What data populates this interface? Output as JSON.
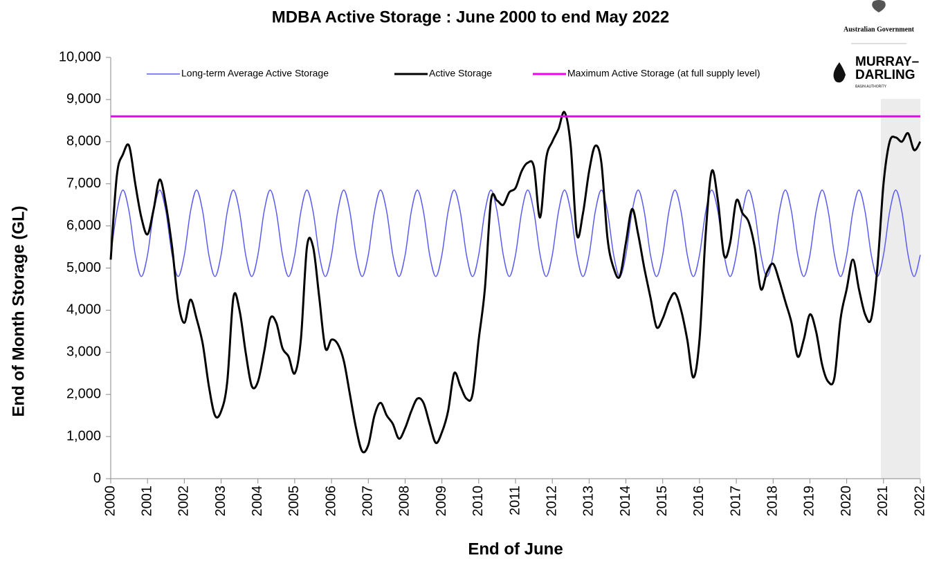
{
  "chart_data": {
    "type": "line",
    "title": "MDBA Active Storage : June 2000 to end May 2022",
    "xlabel": "End of June",
    "ylabel": "End of Month Storage (GL)",
    "logo": {
      "government": "Australian Government",
      "line1": "MURRAY–",
      "line2": "DARLING",
      "line3": "BASIN AUTHORITY"
    },
    "legend": "top",
    "xlim": [
      2000,
      2022
    ],
    "xticks": [
      2000,
      2001,
      2002,
      2003,
      2004,
      2005,
      2006,
      2007,
      2008,
      2009,
      2010,
      2011,
      2012,
      2013,
      2014,
      2015,
      2016,
      2017,
      2018,
      2019,
      2020,
      2021,
      2022
    ],
    "ylim": [
      0,
      10000
    ],
    "yticks": [
      0,
      {
        "value": 1000,
        "label": "1,000"
      },
      {
        "value": 2000,
        "label": "2,000"
      },
      {
        "value": 3000,
        "label": "3,000"
      },
      {
        "value": 4000,
        "label": "4,000"
      },
      {
        "value": 5000,
        "label": "5,000"
      },
      {
        "value": 6000,
        "label": "6,000"
      },
      {
        "value": 7000,
        "label": "7,000"
      },
      {
        "value": 8000,
        "label": "8,000"
      },
      {
        "value": 9000,
        "label": "9,000"
      },
      {
        "value": 10000,
        "label": "10,000"
      }
    ],
    "x": [
      2000,
      2000.167,
      2000.333,
      2000.5,
      2000.667,
      2000.833,
      2001,
      2001.167,
      2001.333,
      2001.5,
      2001.667,
      2001.833,
      2002,
      2002.167,
      2002.333,
      2002.5,
      2002.667,
      2002.833,
      2003,
      2003.167,
      2003.333,
      2003.5,
      2003.667,
      2003.833,
      2004,
      2004.167,
      2004.333,
      2004.5,
      2004.667,
      2004.833,
      2005,
      2005.167,
      2005.333,
      2005.5,
      2005.667,
      2005.833,
      2006,
      2006.167,
      2006.333,
      2006.5,
      2006.667,
      2006.833,
      2007,
      2007.167,
      2007.333,
      2007.5,
      2007.667,
      2007.833,
      2008,
      2008.167,
      2008.333,
      2008.5,
      2008.667,
      2008.833,
      2009,
      2009.167,
      2009.333,
      2009.5,
      2009.667,
      2009.833,
      2010,
      2010.167,
      2010.333,
      2010.5,
      2010.667,
      2010.833,
      2011,
      2011.167,
      2011.333,
      2011.5,
      2011.667,
      2011.833,
      2012,
      2012.167,
      2012.333,
      2012.5,
      2012.667,
      2012.833,
      2013,
      2013.167,
      2013.333,
      2013.5,
      2013.667,
      2013.833,
      2014,
      2014.167,
      2014.333,
      2014.5,
      2014.667,
      2014.833,
      2015,
      2015.167,
      2015.333,
      2015.5,
      2015.667,
      2015.833,
      2016,
      2016.167,
      2016.333,
      2016.5,
      2016.667,
      2016.833,
      2017,
      2017.167,
      2017.333,
      2017.5,
      2017.667,
      2017.833,
      2018,
      2018.167,
      2018.333,
      2018.5,
      2018.667,
      2018.833,
      2019,
      2019.167,
      2019.333,
      2019.5,
      2019.667,
      2019.833,
      2020,
      2020.167,
      2020.333,
      2020.5,
      2020.667,
      2020.833,
      2021,
      2021.167,
      2021.333,
      2021.5,
      2021.667,
      2021.833,
      2022
    ],
    "series": [
      {
        "name": "Long-term Average Active Storage",
        "color": "#5b5bf0",
        "values": [
          5312,
          6337,
          6850,
          6337,
          5312,
          4800,
          5312,
          6337,
          6850,
          6337,
          5312,
          4800,
          5312,
          6337,
          6850,
          6337,
          5312,
          4800,
          5312,
          6337,
          6850,
          6337,
          5312,
          4800,
          5312,
          6337,
          6850,
          6337,
          5312,
          4800,
          5312,
          6337,
          6850,
          6337,
          5312,
          4800,
          5312,
          6337,
          6850,
          6337,
          5312,
          4800,
          5312,
          6337,
          6850,
          6337,
          5312,
          4800,
          5312,
          6337,
          6850,
          6337,
          5312,
          4800,
          5312,
          6337,
          6850,
          6337,
          5312,
          4800,
          5312,
          6337,
          6850,
          6337,
          5312,
          4800,
          5312,
          6337,
          6850,
          6337,
          5312,
          4800,
          5312,
          6337,
          6850,
          6337,
          5312,
          4800,
          5312,
          6337,
          6850,
          6337,
          5312,
          4800,
          5312,
          6337,
          6850,
          6337,
          5312,
          4800,
          5312,
          6337,
          6850,
          6337,
          5312,
          4800,
          5312,
          6337,
          6850,
          6337,
          5312,
          4800,
          5312,
          6337,
          6850,
          6337,
          5312,
          4800,
          5312,
          6337,
          6850,
          6337,
          5312,
          4800,
          5312,
          6337,
          6850,
          6337,
          5312,
          4800,
          5312,
          6337,
          6850,
          6337,
          5312,
          4800,
          5312,
          6337,
          6850,
          6337,
          5312,
          4800,
          5312
        ]
      },
      {
        "name": "Active Storage",
        "color": "#000000",
        "values": [
          5200,
          7200,
          7700,
          7900,
          7000,
          6200,
          5800,
          6400,
          7100,
          6500,
          5500,
          4200,
          3700,
          4250,
          3800,
          3200,
          2200,
          1500,
          1600,
          2300,
          4300,
          4000,
          3000,
          2200,
          2300,
          3000,
          3800,
          3700,
          3100,
          2900,
          2500,
          3300,
          5500,
          5500,
          4300,
          3100,
          3300,
          3200,
          2800,
          2000,
          1200,
          650,
          800,
          1500,
          1800,
          1500,
          1300,
          950,
          1200,
          1600,
          1900,
          1800,
          1300,
          850,
          1100,
          1600,
          2500,
          2200,
          1900,
          2000,
          3300,
          4500,
          6600,
          6600,
          6500,
          6800,
          6900,
          7300,
          7500,
          7400,
          6200,
          7600,
          8000,
          8300,
          8700,
          7900,
          5800,
          6300,
          7300,
          7900,
          7500,
          5700,
          5000,
          4800,
          5600,
          6400,
          5800,
          5000,
          4300,
          3600,
          3800,
          4200,
          4400,
          4000,
          3300,
          2400,
          3300,
          5800,
          7300,
          6600,
          5300,
          5600,
          6600,
          6300,
          6100,
          5500,
          4500,
          4900,
          5100,
          4700,
          4200,
          3700,
          2900,
          3300,
          3900,
          3500,
          2700,
          2300,
          2400,
          3800,
          4500,
          5200,
          4500,
          3900,
          3800,
          5000,
          7000,
          8000,
          8100,
          8000,
          8200,
          7800,
          8000
        ]
      },
      {
        "name": "Maximum Active Storage (at full supply level)",
        "color": "#ee00ee",
        "values": [
          8600,
          8600,
          8600,
          8600,
          8600,
          8600,
          8600,
          8600,
          8600,
          8600,
          8600,
          8600,
          8600,
          8600,
          8600,
          8600,
          8600,
          8600,
          8600,
          8600,
          8600,
          8600,
          8600,
          8600,
          8600,
          8600,
          8600,
          8600,
          8600,
          8600,
          8600,
          8600,
          8600,
          8600,
          8600,
          8600,
          8600,
          8600,
          8600,
          8600,
          8600,
          8600,
          8600,
          8600,
          8600,
          8600,
          8600,
          8600,
          8600,
          8600,
          8600,
          8600,
          8600,
          8600,
          8600,
          8600,
          8600,
          8600,
          8600,
          8600,
          8600,
          8600,
          8600,
          8600,
          8600,
          8600,
          8600,
          8600,
          8600,
          8600,
          8600,
          8600,
          8600,
          8600,
          8600,
          8600,
          8600,
          8600,
          8600,
          8600,
          8600,
          8600,
          8600,
          8600,
          8600,
          8600,
          8600,
          8600,
          8600,
          8600,
          8600,
          8600,
          8600,
          8600,
          8600,
          8600,
          8600,
          8600,
          8600,
          8600,
          8600,
          8600,
          8600,
          8600,
          8600,
          8600,
          8600,
          8600,
          8600,
          8600,
          8600,
          8600,
          8600,
          8600,
          8600,
          8600,
          8600,
          8600,
          8600,
          8600,
          8600,
          8600,
          8600,
          8600,
          8600,
          8600,
          8600,
          8600,
          8600,
          8600,
          8600,
          8600,
          8600
        ]
      }
    ]
  }
}
